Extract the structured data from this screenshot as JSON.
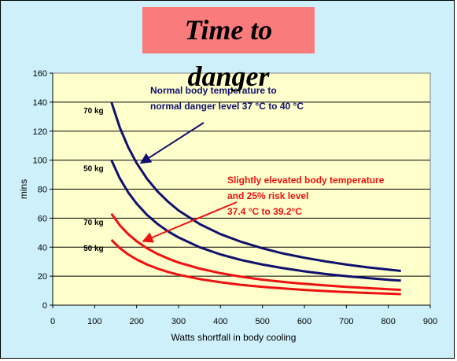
{
  "title": "Time to danger",
  "colors": {
    "frame_bg": "#cdf0fb",
    "title_bg": "#fa7b7b",
    "plot_bg": "#ffffcc",
    "blue": "#10106e",
    "red": "#ee1111",
    "grid": "#000000"
  },
  "chart_data": {
    "type": "line",
    "title": "Time to danger",
    "xlabel": "Watts shortfall in body cooling",
    "ylabel": "mins",
    "xlim": [
      0,
      900
    ],
    "ylim": [
      0,
      160
    ],
    "x_ticks": [
      "0",
      "100",
      "200",
      "300",
      "400",
      "500",
      "600",
      "700",
      "800",
      "900"
    ],
    "y_ticks": [
      "0",
      "20",
      "40",
      "60",
      "80",
      "100",
      "120",
      "140",
      "160"
    ],
    "grid": "horizontal",
    "legend": "none",
    "x": [
      140,
      160,
      180,
      200,
      225,
      250,
      275,
      300,
      350,
      400,
      450,
      500,
      550,
      600,
      650,
      700,
      750,
      800,
      830
    ],
    "series": [
      {
        "group": "normal",
        "label": "70 kg",
        "color": "#10106e",
        "values": [
          140,
          122.5,
          108.9,
          98.0,
          87.1,
          78.4,
          71.3,
          65.3,
          56.0,
          49.0,
          43.6,
          39.2,
          35.6,
          32.7,
          30.2,
          28.0,
          26.1,
          24.5,
          23.6
        ]
      },
      {
        "group": "normal",
        "label": "50 kg",
        "color": "#10106e",
        "values": [
          100,
          87.5,
          77.8,
          70.0,
          62.2,
          56.0,
          50.9,
          46.7,
          40.0,
          35.0,
          31.1,
          28.0,
          25.5,
          23.3,
          21.5,
          20.0,
          18.7,
          17.5,
          16.9
        ]
      },
      {
        "group": "elevated",
        "label": "70 kg",
        "color": "#ee1111",
        "values": [
          63.0,
          55.1,
          49.0,
          44.1,
          39.2,
          35.3,
          32.1,
          29.4,
          25.2,
          22.1,
          19.6,
          17.6,
          16.0,
          14.7,
          13.6,
          12.6,
          11.8,
          11.0,
          10.6
        ]
      },
      {
        "group": "elevated",
        "label": "50 kg",
        "color": "#ee1111",
        "values": [
          45.0,
          39.4,
          35.0,
          31.5,
          28.0,
          25.2,
          22.9,
          21.0,
          18.0,
          15.8,
          14.0,
          12.6,
          11.5,
          10.5,
          9.7,
          9.0,
          8.4,
          7.9,
          7.6
        ]
      }
    ],
    "annotations": [
      {
        "color": "#10106e",
        "lines": [
          "Normal body temperature to",
          "normal danger level    37 °C to 40 °C"
        ],
        "points_to": [
          210,
          98
        ]
      },
      {
        "color": "#ee1111",
        "lines": [
          "Slightly elevated body temperature",
          "and  25% risk level",
          "37.4 °C to 39.2°C"
        ],
        "points_to": [
          215,
          44
        ]
      }
    ]
  }
}
